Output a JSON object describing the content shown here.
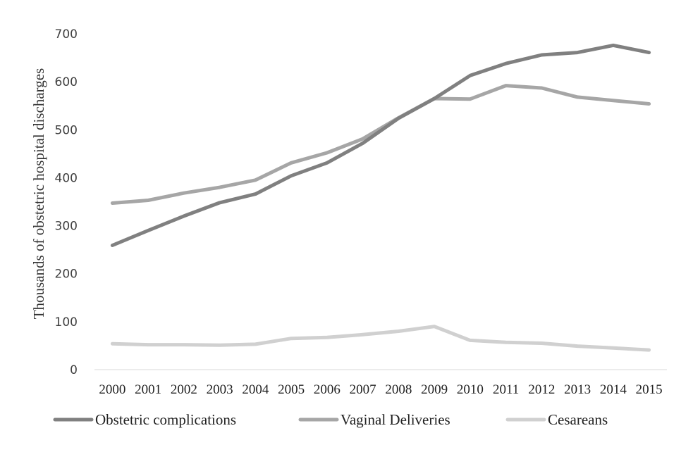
{
  "chart_data": {
    "type": "line",
    "title": "",
    "xlabel": "",
    "ylabel": "Thousands of obstetric hospital discharges",
    "x": [
      "2000",
      "2001",
      "2002",
      "2003",
      "2004",
      "2005",
      "2006",
      "2007",
      "2008",
      "2009",
      "2010",
      "2011",
      "2012",
      "2013",
      "2014",
      "2015"
    ],
    "ylim": [
      0,
      700
    ],
    "yticks": [
      0,
      100,
      200,
      300,
      400,
      500,
      600,
      700
    ],
    "grid": false,
    "legend_position": "bottom",
    "series": [
      {
        "name": "Obstetric complications",
        "color": "#808080",
        "values": [
          259,
          290,
          320,
          348,
          366,
          404,
          431,
          472,
          524,
          565,
          613,
          638,
          656,
          661,
          676,
          661
        ]
      },
      {
        "name": "Vaginal Deliveries",
        "color": "#a6a6a6",
        "values": [
          347,
          353,
          368,
          380,
          395,
          431,
          452,
          481,
          525,
          565,
          564,
          592,
          587,
          568,
          561,
          554
        ]
      },
      {
        "name": "Cesareans",
        "color": "#d0d0d0",
        "values": [
          54,
          52,
          52,
          51,
          53,
          65,
          67,
          73,
          80,
          90,
          61,
          57,
          55,
          49,
          45,
          41
        ]
      }
    ]
  }
}
